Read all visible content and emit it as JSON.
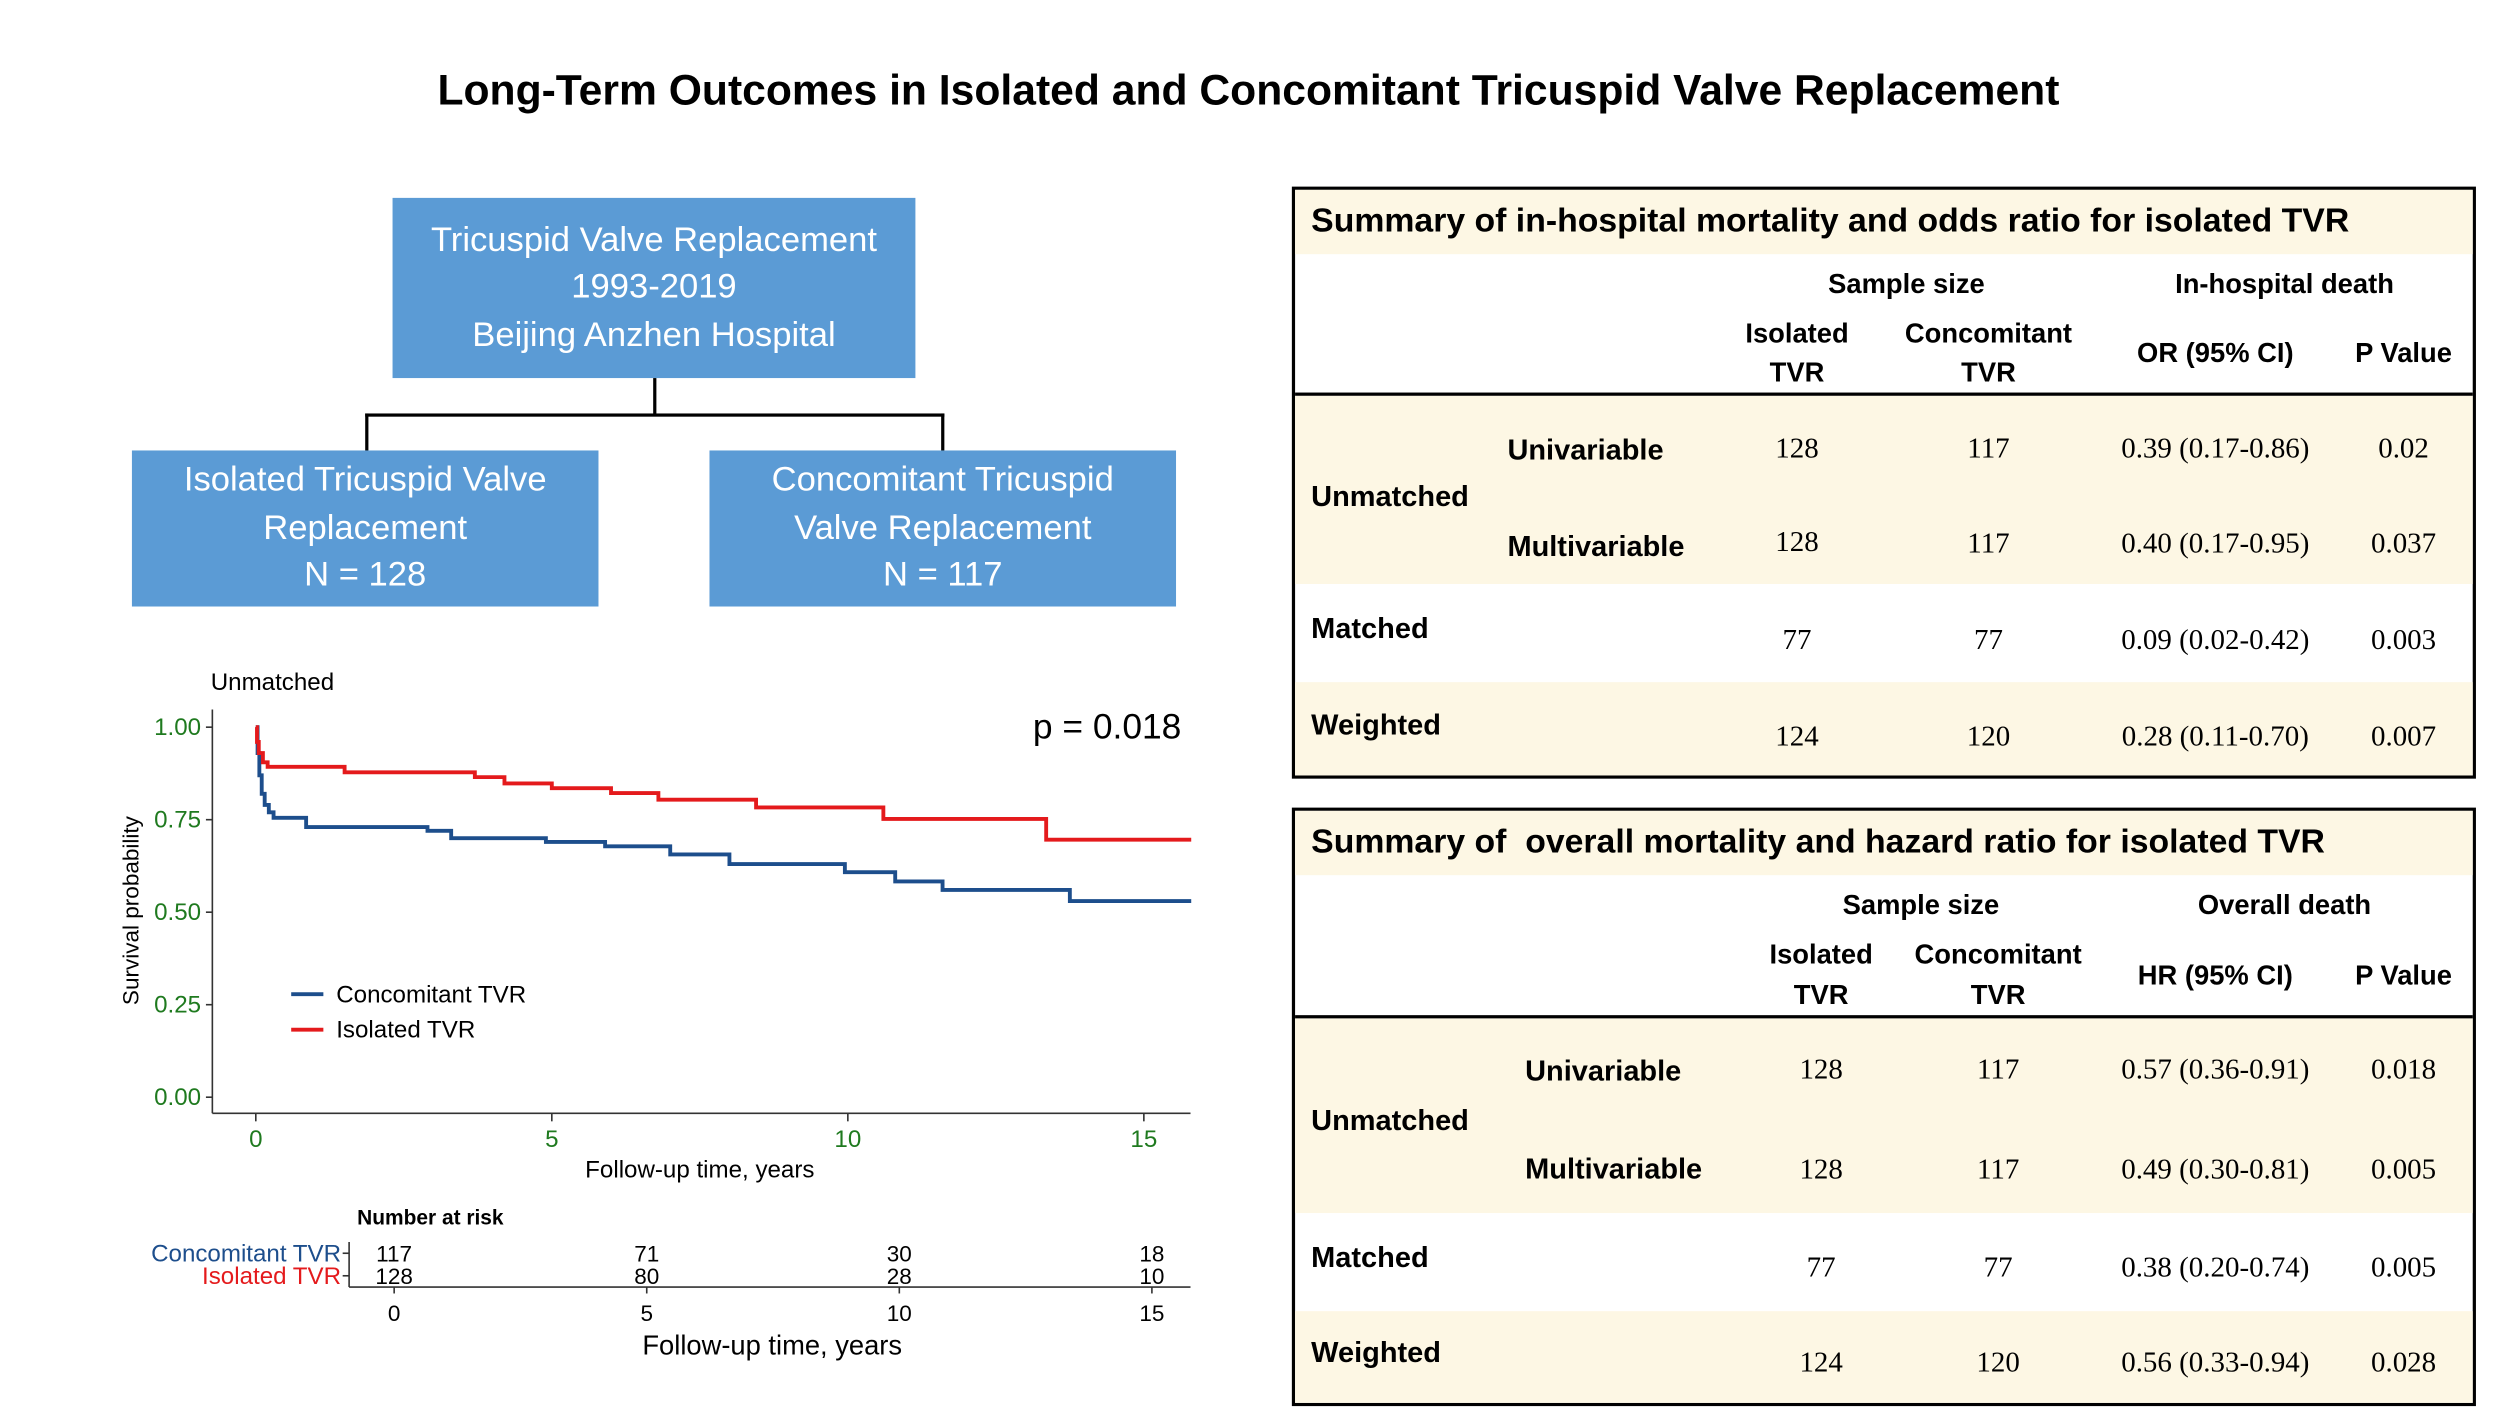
{
  "title": "Long-Term Outcomes in Isolated and Concomitant Tricuspid Valve Replacement",
  "colors": {
    "flow_box": "#5b9bd5",
    "table_band": "#fdf7e4",
    "concomitant": "#1d4e8c",
    "isolated": "#e41a1c",
    "tick_label": "#1f7a1f"
  },
  "flowchart": {
    "top": [
      "Tricuspid Valve Replacement",
      "1993-2019",
      "Beijing Anzhen Hospital"
    ],
    "left": [
      "Isolated Tricuspid Valve",
      "Replacement",
      "N = 128"
    ],
    "right": [
      "Concomitant Tricuspid",
      "Valve Replacement",
      "N = 117"
    ]
  },
  "chart_data": {
    "type": "line",
    "step": true,
    "title": "Unmatched",
    "xlabel": "Follow-up time, years",
    "ylabel": "Survival probability",
    "xlim": [
      -0.7,
      15.8
    ],
    "ylim": [
      0,
      1.0
    ],
    "x_ticks": [
      0,
      5,
      10,
      15
    ],
    "x_tick_labels": [
      "0",
      "5",
      "10",
      "15"
    ],
    "y_ticks": [
      0,
      0.25,
      0.5,
      0.75,
      1.0
    ],
    "y_tick_labels": [
      "0.00",
      "0.25",
      "0.50",
      "0.75",
      "1.00"
    ],
    "annotation": "p = 0.018",
    "legend_position": "bottom-left",
    "grid": false,
    "series": [
      {
        "name": "Concomitant TVR",
        "color": "#1d4e8c",
        "points": [
          [
            0,
            1.0
          ],
          [
            0.03,
            0.93
          ],
          [
            0.06,
            0.87
          ],
          [
            0.1,
            0.82
          ],
          [
            0.15,
            0.79
          ],
          [
            0.22,
            0.77
          ],
          [
            0.3,
            0.755
          ],
          [
            0.85,
            0.73
          ],
          [
            2.9,
            0.72
          ],
          [
            3.3,
            0.7
          ],
          [
            4.9,
            0.69
          ],
          [
            5.9,
            0.678
          ],
          [
            7.0,
            0.656
          ],
          [
            8.0,
            0.63
          ],
          [
            9.95,
            0.608
          ],
          [
            10.8,
            0.583
          ],
          [
            11.6,
            0.56
          ],
          [
            13.75,
            0.53
          ],
          [
            15.8,
            0.53
          ]
        ]
      },
      {
        "name": "Isolated TVR",
        "color": "#e41a1c",
        "points": [
          [
            0,
            1.0
          ],
          [
            0.02,
            0.96
          ],
          [
            0.05,
            0.93
          ],
          [
            0.12,
            0.905
          ],
          [
            0.2,
            0.893
          ],
          [
            1.5,
            0.878
          ],
          [
            3.7,
            0.865
          ],
          [
            4.2,
            0.848
          ],
          [
            5.0,
            0.835
          ],
          [
            6.0,
            0.822
          ],
          [
            6.8,
            0.804
          ],
          [
            8.45,
            0.783
          ],
          [
            10.6,
            0.752
          ],
          [
            13.35,
            0.696
          ],
          [
            15.8,
            0.696
          ]
        ]
      }
    ],
    "risk_table": {
      "title": "Number at risk",
      "times": [
        0,
        5,
        10,
        15
      ],
      "time_labels": [
        "0",
        "5",
        "10",
        "15"
      ],
      "xlabel": "Follow-up time, years",
      "rows": [
        {
          "name": "Concomitant TVR",
          "color": "#1d4e8c",
          "values": [
            "117",
            "71",
            "30",
            "18"
          ]
        },
        {
          "name": "Isolated TVR",
          "color": "#e41a1c",
          "values": [
            "128",
            "80",
            "28",
            "10"
          ]
        }
      ]
    }
  },
  "tables": [
    {
      "title": "Summary of in-hospital mortality and odds ratio for isolated TVR",
      "sample_size_header": "Sample size",
      "outcome_header": "In-hospital death",
      "isolated_header": [
        "Isolated",
        "TVR"
      ],
      "concomitant_header": [
        "Concomitant",
        "TVR"
      ],
      "ratio_header": "OR (95% CI)",
      "p_header": "P Value",
      "rows": [
        {
          "group": "Unmatched",
          "model": "Univariable",
          "isolated": "128",
          "concomitant": "117",
          "ratio": "0.39 (0.17-0.86)",
          "p": "0.02"
        },
        {
          "model": "Multivariable",
          "isolated": "128",
          "concomitant": "117",
          "ratio": "0.40 (0.17-0.95)",
          "p": "0.037"
        },
        {
          "group": "Matched",
          "isolated": "77",
          "concomitant": "77",
          "ratio": "0.09 (0.02-0.42)",
          "p": "0.003"
        },
        {
          "group": "Weighted",
          "isolated": "124",
          "concomitant": "120",
          "ratio": "0.28 (0.11-0.70)",
          "p": "0.007"
        }
      ]
    },
    {
      "title": "Summary of  overall mortality and hazard ratio for isolated TVR",
      "sample_size_header": "Sample size",
      "outcome_header": "Overall death",
      "isolated_header": [
        "Isolated",
        "TVR"
      ],
      "concomitant_header": [
        "Concomitant",
        "TVR"
      ],
      "ratio_header": "HR (95% CI)",
      "p_header": "P Value",
      "rows": [
        {
          "group": "Unmatched",
          "model": "Univariable",
          "isolated": "128",
          "concomitant": "117",
          "ratio": "0.57 (0.36-0.91)",
          "p": "0.018"
        },
        {
          "model": "Multivariable",
          "isolated": "128",
          "concomitant": "117",
          "ratio": "0.49 (0.30-0.81)",
          "p": "0.005"
        },
        {
          "group": "Matched",
          "isolated": "77",
          "concomitant": "77",
          "ratio": "0.38 (0.20-0.74)",
          "p": "0.005"
        },
        {
          "group": "Weighted",
          "isolated": "124",
          "concomitant": "120",
          "ratio": "0.56 (0.33-0.94)",
          "p": "0.028"
        }
      ]
    }
  ]
}
